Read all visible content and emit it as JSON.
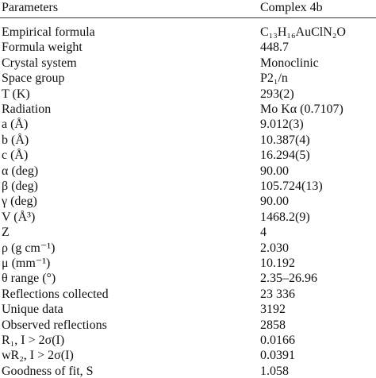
{
  "table": {
    "header": [
      "Parameters",
      "Complex 4b"
    ],
    "rows": [
      [
        "Empirical formula",
        "C₁₃H₁₆AuClN₂O"
      ],
      [
        "Formula weight",
        "448.7"
      ],
      [
        "Crystal system",
        "Monoclinic"
      ],
      [
        "Space group",
        "P2₁/n"
      ],
      [
        "T (K)",
        "293(2)"
      ],
      [
        "Radiation",
        "Mo Kα (0.7107)"
      ],
      [
        "a (Å)",
        "9.012(3)"
      ],
      [
        "b (Å)",
        "10.387(4)"
      ],
      [
        "c (Å)",
        "16.294(5)"
      ],
      [
        "α (deg)",
        "90.00"
      ],
      [
        "β (deg)",
        "105.724(13)"
      ],
      [
        "γ (deg)",
        "90.00"
      ],
      [
        "V (Å³)",
        "1468.2(9)"
      ],
      [
        "Z",
        "4"
      ],
      [
        "ρ (g cm⁻¹)",
        "2.030"
      ],
      [
        "μ (mm⁻¹)",
        "10.192"
      ],
      [
        "θ range (°)",
        "2.35–26.96"
      ],
      [
        "Reflections collected",
        "23 336"
      ],
      [
        "Unique data",
        "3192"
      ],
      [
        "Observed reflections",
        "2858"
      ],
      [
        "R₁, I > 2σ(I)",
        "0.0166"
      ],
      [
        "wR₂, I > 2σ(I)",
        "0.0391"
      ],
      [
        "Goodness of fit, S",
        "1.058"
      ]
    ]
  }
}
